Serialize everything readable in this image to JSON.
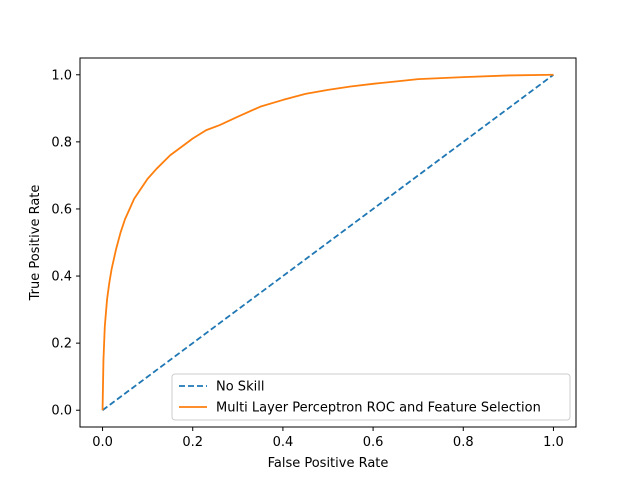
{
  "chart_data": {
    "type": "line",
    "title": "",
    "xlabel": "False Positive Rate",
    "ylabel": "True Positive Rate",
    "xlim": [
      -0.05,
      1.05
    ],
    "ylim": [
      -0.05,
      1.05
    ],
    "xticks": [
      0.0,
      0.2,
      0.4,
      0.6,
      0.8,
      1.0
    ],
    "yticks": [
      0.0,
      0.2,
      0.4,
      0.6,
      0.8,
      1.0
    ],
    "xtick_labels": [
      "0.0",
      "0.2",
      "0.4",
      "0.6",
      "0.8",
      "1.0"
    ],
    "ytick_labels": [
      "0.0",
      "0.2",
      "0.4",
      "0.6",
      "0.8",
      "1.0"
    ],
    "grid": false,
    "legend_position": "lower-right",
    "series": [
      {
        "name": "No Skill",
        "style": "dashed",
        "color": "#1f77b4",
        "x": [
          0,
          1
        ],
        "y": [
          0,
          1
        ]
      },
      {
        "name": "Multi Layer Perceptron ROC and Feature Selection",
        "style": "solid",
        "color": "#ff7f0e",
        "x": [
          0,
          0.002,
          0.005,
          0.01,
          0.015,
          0.02,
          0.03,
          0.04,
          0.05,
          0.06,
          0.07,
          0.08,
          0.1,
          0.12,
          0.15,
          0.18,
          0.2,
          0.23,
          0.26,
          0.3,
          0.35,
          0.4,
          0.45,
          0.5,
          0.55,
          0.6,
          0.65,
          0.7,
          0.8,
          0.9,
          1.0
        ],
        "y": [
          0,
          0.15,
          0.25,
          0.33,
          0.38,
          0.42,
          0.48,
          0.53,
          0.57,
          0.6,
          0.63,
          0.65,
          0.69,
          0.72,
          0.76,
          0.79,
          0.81,
          0.835,
          0.85,
          0.875,
          0.905,
          0.925,
          0.943,
          0.955,
          0.965,
          0.973,
          0.98,
          0.987,
          0.993,
          0.998,
          1.0
        ]
      }
    ]
  }
}
